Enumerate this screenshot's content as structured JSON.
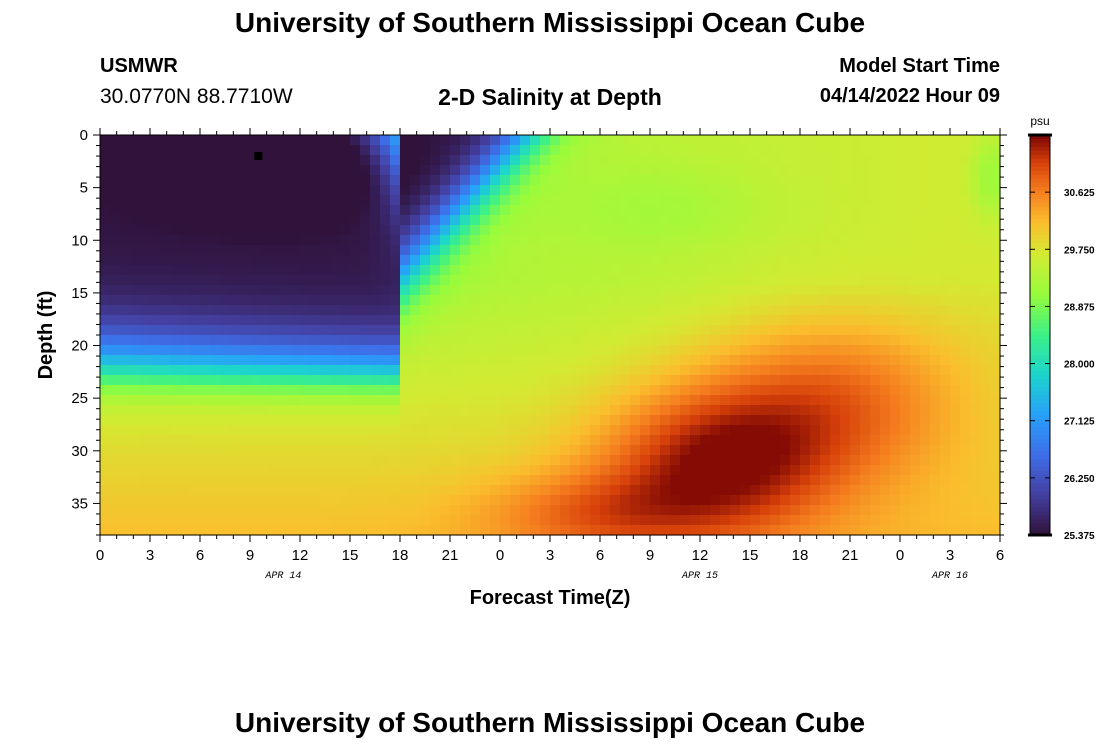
{
  "header": {
    "title": "University of Southern Mississippi Ocean Cube",
    "station": "USMWR",
    "coordinates": "30.0770N  88.7710W",
    "subtitle": "2-D Salinity at Depth",
    "model_start_label": "Model Start Time",
    "model_start_value": "04/14/2022 Hour 09"
  },
  "footer": {
    "title": "University of Southern Mississippi Ocean Cube"
  },
  "chart_data": {
    "type": "heatmap",
    "title": "2-D Salinity at Depth",
    "xlabel": "Forecast Time(Z)",
    "ylabel": "Depth (ft)",
    "x_tick_labels": [
      "0",
      "3",
      "6",
      "9",
      "12",
      "15",
      "18",
      "21",
      "0",
      "3",
      "6",
      "9",
      "12",
      "15",
      "18",
      "21",
      "0",
      "3",
      "6"
    ],
    "x_range_hours": [
      0,
      54
    ],
    "date_labels": [
      {
        "text": "APR 14",
        "hour": 11
      },
      {
        "text": "APR 15",
        "hour": 36
      },
      {
        "text": "APR 16",
        "hour": 51
      }
    ],
    "y_ticks": [
      0,
      5,
      10,
      15,
      20,
      25,
      30,
      35
    ],
    "y_range_ft": [
      0,
      38
    ],
    "y_inverted": true,
    "colorbar": {
      "unit": "psu",
      "min": 25.375,
      "max": 31.5,
      "tick_values": [
        25.375,
        26.25,
        27.125,
        28.0,
        28.875,
        29.75,
        30.625
      ],
      "tick_labels": [
        "25.375",
        "26.250",
        "27.125",
        "28.000",
        "28.875",
        "29.750",
        "30.625"
      ],
      "colormap": "turbo"
    },
    "marker": {
      "hour": 9.5,
      "depth_ft": 2.0
    },
    "approx_features": [
      {
        "region": "fresh core",
        "hours": [
          6,
          18
        ],
        "depth_ft": [
          0,
          8
        ],
        "psu": 25.6
      },
      {
        "region": "surface layer",
        "hours": [
          22,
          54
        ],
        "depth_ft": [
          0,
          15
        ],
        "psu": 29.3
      },
      {
        "region": "salty bottom",
        "hours": [
          26,
          40
        ],
        "depth_ft": [
          28,
          38
        ],
        "psu": 31.3
      },
      {
        "region": "salty mid-depth",
        "hours": [
          34,
          40
        ],
        "depth_ft": [
          18,
          30
        ],
        "psu": 31.0
      }
    ]
  }
}
